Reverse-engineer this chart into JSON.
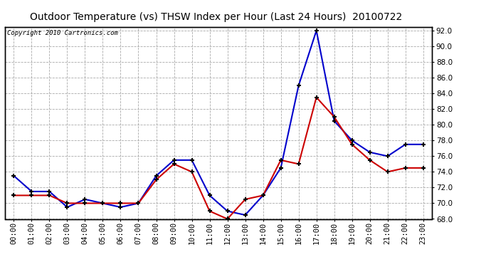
{
  "title": "Outdoor Temperature (vs) THSW Index per Hour (Last 24 Hours)  20100722",
  "copyright": "Copyright 2010 Cartronics.com",
  "hours": [
    "00:00",
    "01:00",
    "02:00",
    "03:00",
    "04:00",
    "05:00",
    "06:00",
    "07:00",
    "08:00",
    "09:00",
    "10:00",
    "11:00",
    "12:00",
    "13:00",
    "14:00",
    "15:00",
    "16:00",
    "17:00",
    "18:00",
    "19:00",
    "20:00",
    "21:00",
    "22:00",
    "23:00"
  ],
  "temp": [
    71.0,
    71.0,
    71.0,
    70.0,
    70.0,
    70.0,
    70.0,
    70.0,
    73.0,
    75.0,
    74.0,
    69.0,
    68.0,
    70.5,
    71.0,
    75.5,
    75.0,
    83.5,
    81.0,
    77.5,
    75.5,
    74.0,
    74.5,
    74.5
  ],
  "thsw": [
    73.5,
    71.5,
    71.5,
    69.5,
    70.5,
    70.0,
    69.5,
    70.0,
    73.5,
    75.5,
    75.5,
    71.0,
    69.0,
    68.5,
    71.0,
    74.5,
    85.0,
    92.0,
    80.5,
    78.0,
    76.5,
    76.0,
    77.5,
    77.5
  ],
  "ylim": [
    68.0,
    92.5
  ],
  "yticks": [
    68.0,
    70.0,
    72.0,
    74.0,
    76.0,
    78.0,
    80.0,
    82.0,
    84.0,
    86.0,
    88.0,
    90.0,
    92.0
  ],
  "temp_color": "#cc0000",
  "thsw_color": "#0000cc",
  "bg_color": "#ffffff",
  "plot_bg_color": "#ffffff",
  "grid_color": "#aaaaaa",
  "title_fontsize": 10,
  "copyright_fontsize": 6.5,
  "tick_fontsize": 7.5,
  "marker_size": 5
}
